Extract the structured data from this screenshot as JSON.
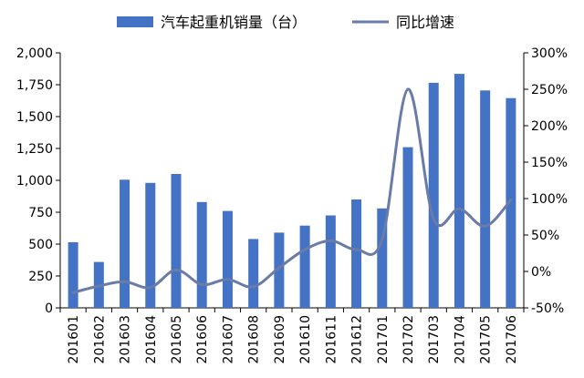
{
  "chart_data": {
    "type": "bar+line",
    "title": "",
    "categories": [
      "201601",
      "201602",
      "201603",
      "201604",
      "201605",
      "201606",
      "201607",
      "201608",
      "201609",
      "201610",
      "201611",
      "201612",
      "201701",
      "201702",
      "201703",
      "201704",
      "201705",
      "201706"
    ],
    "series": [
      {
        "name": "汽车起重机销量（台）",
        "type": "bar",
        "axis": "left",
        "color": "#4472C4",
        "values": [
          515,
          360,
          1005,
          980,
          1050,
          830,
          760,
          540,
          590,
          645,
          725,
          850,
          780,
          1260,
          1765,
          1835,
          1705,
          1645
        ]
      },
      {
        "name": "同比增速",
        "type": "line",
        "axis": "right",
        "color": "#6B7BA8",
        "values": [
          -29,
          -20,
          -14,
          -22,
          2,
          -18,
          -11,
          -21,
          5,
          30,
          42,
          30,
          44,
          250,
          72,
          86,
          62,
          98
        ]
      }
    ],
    "y_left": {
      "min": 0,
      "max": 2000,
      "ticks": [
        0,
        250,
        500,
        750,
        1000,
        1250,
        1500,
        1750,
        2000
      ],
      "tick_labels": [
        "0",
        "250",
        "500",
        "750",
        "1,000",
        "1,250",
        "1,500",
        "1,750",
        "2,000"
      ]
    },
    "y_right": {
      "min": -50,
      "max": 300,
      "ticks": [
        -50,
        0,
        50,
        100,
        150,
        200,
        250,
        300
      ],
      "tick_labels": [
        "-50%",
        "0%",
        "50%",
        "100%",
        "150%",
        "200%",
        "250%",
        "300%"
      ]
    },
    "grid": false,
    "legend_position": "top"
  }
}
